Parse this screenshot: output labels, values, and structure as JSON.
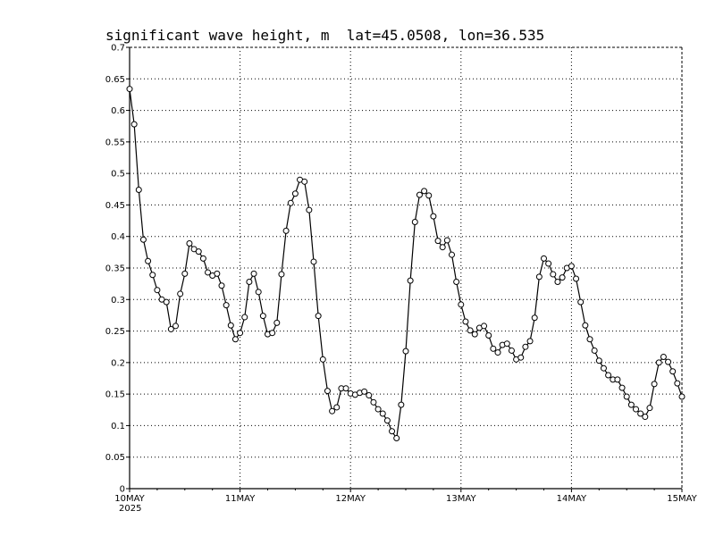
{
  "chart_data": {
    "type": "line",
    "title": "significant wave height, m  lat=45.0508, lon=36.535",
    "xlabel": "",
    "ylabel": "",
    "ylim": [
      0,
      0.7
    ],
    "yticks": [
      "0",
      "0.05",
      "0.1",
      "0.15",
      "0.2",
      "0.25",
      "0.3",
      "0.35",
      "0.4",
      "0.45",
      "0.5",
      "0.55",
      "0.6",
      "0.65",
      "0.7"
    ],
    "xticks": [
      "10MAY",
      "11MAY",
      "12MAY",
      "13MAY",
      "14MAY",
      "15MAY"
    ],
    "xtick_year": "2025",
    "x_unit": "days since 10MAY 2025 00Z, 3-hourly",
    "grid": true,
    "marker": "open-circle",
    "series": [
      {
        "values": [
          0.634,
          0.578,
          0.474,
          0.395,
          0.361,
          0.339,
          0.315,
          0.3,
          0.296,
          0.253,
          0.258,
          0.309,
          0.341,
          0.389,
          0.38,
          0.376,
          0.365,
          0.343,
          0.338,
          0.341,
          0.322,
          0.291,
          0.259,
          0.237,
          0.247,
          0.272,
          0.328,
          0.341,
          0.312,
          0.274,
          0.245,
          0.247,
          0.263,
          0.34,
          0.409,
          0.453,
          0.468,
          0.49,
          0.487,
          0.442,
          0.36,
          0.274,
          0.205,
          0.155,
          0.123,
          0.129,
          0.159,
          0.159,
          0.151,
          0.149,
          0.152,
          0.154,
          0.148,
          0.137,
          0.126,
          0.119,
          0.108,
          0.091,
          0.08,
          0.133,
          0.218,
          0.33,
          0.423,
          0.466,
          0.472,
          0.465,
          0.432,
          0.393,
          0.383,
          0.394,
          0.371,
          0.328,
          0.292,
          0.265,
          0.251,
          0.245,
          0.255,
          0.258,
          0.243,
          0.222,
          0.216,
          0.228,
          0.23,
          0.219,
          0.205,
          0.208,
          0.225,
          0.234,
          0.271,
          0.336,
          0.365,
          0.357,
          0.34,
          0.328,
          0.335,
          0.35,
          0.353,
          0.333,
          0.296,
          0.259,
          0.237,
          0.219,
          0.203,
          0.191,
          0.18,
          0.173,
          0.173,
          0.16,
          0.146,
          0.133,
          0.126,
          0.119,
          0.114,
          0.128,
          0.166,
          0.2,
          0.209,
          0.201,
          0.186,
          0.167,
          0.146
        ]
      }
    ]
  }
}
